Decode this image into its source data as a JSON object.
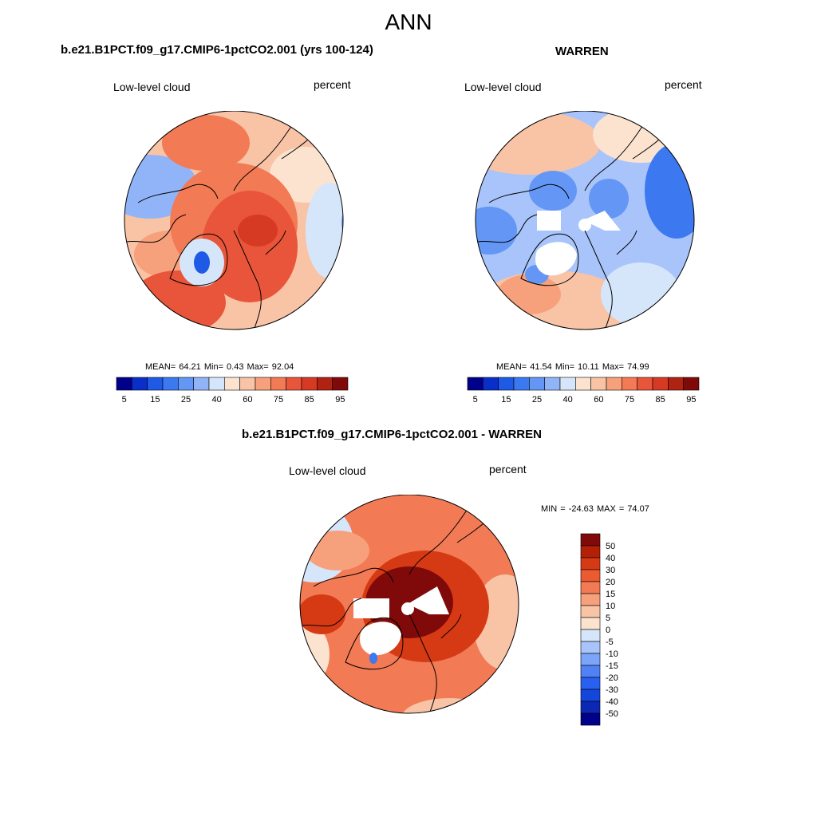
{
  "figure": {
    "title": "ANN"
  },
  "panels": [
    {
      "title": "b.e21.B1PCT.f09_g17.CMIP6-1pctCO2.001 (yrs 100-124)",
      "variable": "Low-level cloud",
      "units": "percent",
      "stats": "MEAN=  64.21  Min=   0.43  Max=  92.04"
    },
    {
      "title": "WARREN",
      "variable": "Low-level cloud",
      "units": "percent",
      "stats": "MEAN=  41.54  Min=  10.11  Max=  74.99"
    },
    {
      "title": "b.e21.B1PCT.f09_g17.CMIP6-1pctCO2.001 - WARREN",
      "variable": "Low-level cloud",
      "units": "percent",
      "stats": "MIN = -24.63 MAX =  74.07"
    }
  ],
  "colorbar_abs": {
    "colors": [
      "#00008b",
      "#0a2fc8",
      "#1e5ae6",
      "#3c78f0",
      "#6496f5",
      "#91b4f8",
      "#d6e6fa",
      "#fbe3d0",
      "#f9c3a6",
      "#f7a07c",
      "#f27a54",
      "#e8553a",
      "#d63a22",
      "#b02212",
      "#800a0a"
    ],
    "labels": [
      "5",
      "15",
      "25",
      "40",
      "60",
      "75",
      "85",
      "95"
    ]
  },
  "colorbar_diff": {
    "colors": [
      "#00008b",
      "#0a28b4",
      "#1446dc",
      "#2860f0",
      "#5082f5",
      "#7ca4f8",
      "#a8c4fa",
      "#d6e6fa",
      "#fbe3d0",
      "#f9c3a6",
      "#f7a07c",
      "#f27a54",
      "#ec5a32",
      "#d63a14",
      "#b42006",
      "#800a0a"
    ],
    "labels": [
      "50",
      "40",
      "30",
      "20",
      "15",
      "10",
      "5",
      "0",
      "-5",
      "-10",
      "-15",
      "-20",
      "-30",
      "-40",
      "-50"
    ]
  }
}
